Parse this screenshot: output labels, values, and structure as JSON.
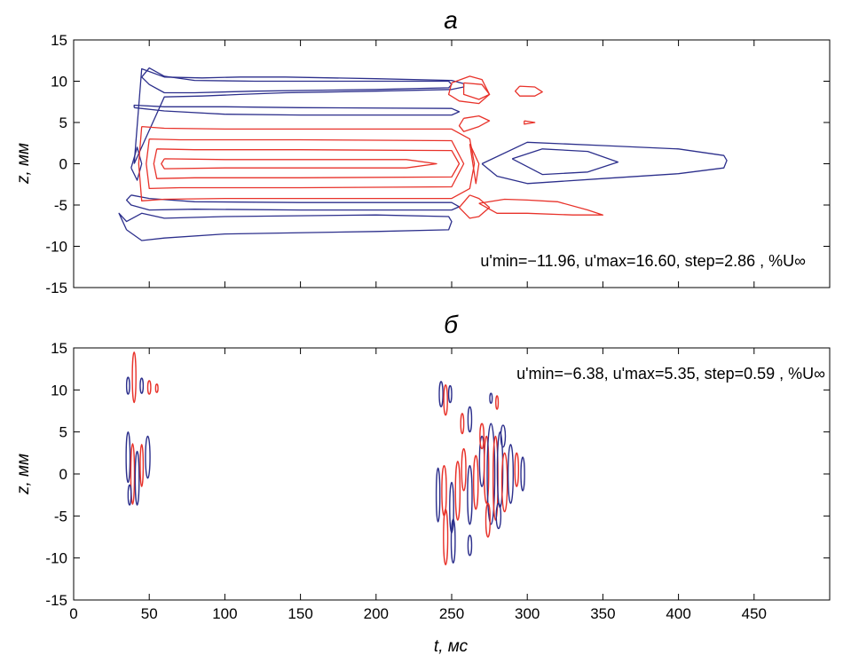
{
  "chart_data": [
    {
      "type": "contour",
      "title": "а",
      "xlabel": "",
      "ylabel": "z, мм",
      "xlim": [
        0,
        500
      ],
      "ylim": [
        -15,
        15
      ],
      "yticks": [
        -15,
        -10,
        -5,
        0,
        5,
        10,
        15
      ],
      "xticks": [
        0,
        50,
        100,
        150,
        200,
        250,
        300,
        350,
        400,
        450
      ],
      "xtick_labels_shown": false,
      "grid": false,
      "annotation": "u'min=−11.96, u'max=16.60, step=2.86 , %U∞",
      "u_min": -11.96,
      "u_max": 16.6,
      "step": 2.86,
      "colors": {
        "positive": "#e8322a",
        "negative": "#2c2f8c"
      },
      "contours": [
        {
          "sign": "negative",
          "x": [
            40,
            60,
            85,
            110,
            140,
            200,
            250,
            258,
            258,
            250,
            200,
            140,
            110,
            85,
            60,
            45,
            40
          ],
          "y": [
            0,
            8.1,
            8.2,
            8.4,
            8.6,
            8.8,
            9.0,
            9.3,
            9.7,
            10.1,
            10.3,
            10.5,
            10.5,
            10.4,
            10.5,
            11.5,
            0
          ]
        },
        {
          "sign": "negative",
          "x": [
            45,
            50,
            60,
            80,
            120,
            200,
            248,
            250,
            248,
            200,
            120,
            80,
            60,
            50,
            45
          ],
          "y": [
            10.5,
            11.6,
            10.6,
            10.1,
            10.0,
            10.0,
            10.0,
            9.6,
            9.2,
            9.0,
            8.8,
            8.6,
            8.6,
            9.6,
            10.5
          ]
        },
        {
          "sign": "negative",
          "x": [
            38,
            50,
            80,
            150,
            250,
            255,
            250,
            150,
            80,
            50,
            38,
            35,
            38
          ],
          "y": [
            -3.8,
            -4.2,
            -4.6,
            -4.7,
            -4.7,
            -5.2,
            -5.6,
            -5.6,
            -5.5,
            -5.6,
            -5.0,
            -4.4,
            -3.8
          ]
        },
        {
          "sign": "negative",
          "x": [
            35,
            45,
            60,
            100,
            200,
            248,
            250,
            248,
            200,
            100,
            60,
            45,
            35,
            30,
            35
          ],
          "y": [
            -8.0,
            -9.3,
            -9.0,
            -8.5,
            -8.2,
            -8.0,
            -7.0,
            -6.4,
            -6.2,
            -6.4,
            -6.6,
            -6.0,
            -7.0,
            -6.0,
            -8.0
          ]
        },
        {
          "sign": "negative",
          "x": [
            270,
            300,
            350,
            400,
            430,
            432,
            430,
            400,
            350,
            300,
            280,
            270
          ],
          "y": [
            0,
            2.6,
            2.2,
            1.8,
            1.0,
            0.4,
            -0.5,
            -1.2,
            -1.8,
            -2.4,
            -1.5,
            0
          ]
        },
        {
          "sign": "negative",
          "x": [
            290,
            310,
            340,
            360,
            340,
            310,
            290
          ],
          "y": [
            0.6,
            1.8,
            1.5,
            0.2,
            -1.0,
            -1.3,
            0.6
          ]
        },
        {
          "sign": "negative",
          "x": [
            40,
            60,
            100,
            150,
            250,
            255,
            250,
            150,
            100,
            60,
            40,
            40
          ],
          "y": [
            6.8,
            6.4,
            6.0,
            5.9,
            5.9,
            6.3,
            6.7,
            6.8,
            6.9,
            6.9,
            7.1,
            6.8
          ]
        },
        {
          "sign": "negative",
          "x": [
            38,
            42,
            45,
            42,
            38
          ],
          "y": [
            -0.5,
            2.0,
            0.0,
            -2.0,
            -0.5
          ]
        },
        {
          "sign": "positive",
          "x": [
            45,
            60,
            100,
            150,
            250,
            262,
            265,
            262,
            250,
            150,
            100,
            60,
            45,
            43,
            45
          ],
          "y": [
            4.5,
            4.3,
            4.2,
            4.2,
            4.2,
            3.0,
            0.0,
            -3.0,
            -4.2,
            -4.2,
            -4.2,
            -4.3,
            -4.5,
            0.0,
            4.5
          ]
        },
        {
          "sign": "positive",
          "x": [
            50,
            70,
            100,
            150,
            250,
            258,
            250,
            150,
            100,
            70,
            50,
            48,
            50
          ],
          "y": [
            3.0,
            2.9,
            2.9,
            2.9,
            2.8,
            0.0,
            -2.8,
            -2.9,
            -2.9,
            -2.9,
            -3.0,
            0.0,
            3.0
          ]
        },
        {
          "sign": "positive",
          "x": [
            55,
            80,
            150,
            250,
            255,
            250,
            150,
            80,
            55,
            53,
            55
          ],
          "y": [
            1.8,
            1.7,
            1.7,
            1.6,
            0.0,
            -1.6,
            -1.7,
            -1.7,
            -1.8,
            0.0,
            1.8
          ]
        },
        {
          "sign": "positive",
          "x": [
            60,
            100,
            150,
            220,
            240,
            220,
            150,
            100,
            60,
            58,
            60
          ],
          "y": [
            0.6,
            0.5,
            0.5,
            0.5,
            0.0,
            -0.5,
            -0.5,
            -0.5,
            -0.6,
            0.0,
            0.6
          ]
        },
        {
          "sign": "positive",
          "x": [
            250,
            262,
            270,
            275,
            268,
            255,
            248,
            250
          ],
          "y": [
            9.8,
            10.6,
            10.2,
            8.4,
            7.3,
            7.6,
            8.4,
            9.8
          ]
        },
        {
          "sign": "positive",
          "x": [
            258,
            270,
            275,
            268,
            258,
            258
          ],
          "y": [
            9.8,
            9.6,
            8.4,
            7.8,
            8.4,
            9.8
          ]
        },
        {
          "sign": "positive",
          "x": [
            295,
            305,
            310,
            305,
            295,
            292,
            295
          ],
          "y": [
            9.4,
            9.3,
            8.7,
            8.2,
            8.2,
            8.8,
            9.4
          ]
        },
        {
          "sign": "positive",
          "x": [
            298,
            305,
            298,
            298
          ],
          "y": [
            5.2,
            5.0,
            4.8,
            5.2
          ]
        },
        {
          "sign": "positive",
          "x": [
            258,
            268,
            275,
            268,
            258,
            255,
            258
          ],
          "y": [
            5.5,
            5.8,
            5.2,
            4.5,
            3.9,
            4.6,
            5.5
          ]
        },
        {
          "sign": "positive",
          "x": [
            262,
            268,
            275,
            268,
            262,
            255,
            262
          ],
          "y": [
            -3.8,
            -4.2,
            -5.3,
            -6.4,
            -6.6,
            -5.3,
            -3.8
          ]
        },
        {
          "sign": "positive",
          "x": [
            268,
            285,
            300,
            320,
            340,
            350,
            330,
            300,
            280,
            268
          ],
          "y": [
            -4.8,
            -4.3,
            -4.4,
            -4.6,
            -5.6,
            -6.2,
            -6.2,
            -6.0,
            -6.0,
            -4.8
          ]
        },
        {
          "sign": "positive",
          "x": [
            262,
            268,
            266,
            262
          ],
          "y": [
            2.4,
            0.0,
            -2.4,
            2.4
          ]
        }
      ]
    },
    {
      "type": "contour",
      "title": "б",
      "xlabel": "t, мс",
      "ylabel": "z, мм",
      "xlim": [
        0,
        500
      ],
      "ylim": [
        -15,
        15
      ],
      "yticks": [
        -15,
        -10,
        -5,
        0,
        5,
        10,
        15
      ],
      "xticks": [
        0,
        50,
        100,
        150,
        200,
        250,
        300,
        350,
        400,
        450
      ],
      "xtick_labels_shown": true,
      "grid": false,
      "annotation": "u'min=−6.38, u'max=5.35, step=0.59 , %U∞",
      "u_min": -6.38,
      "u_max": 5.35,
      "step": 0.59,
      "colors": {
        "positive": "#e8322a",
        "negative": "#2c2f8c"
      },
      "blobs": [
        {
          "sign": "positive",
          "cx": 40,
          "cy": 11.5,
          "rx": 1.2,
          "ry": 3.0
        },
        {
          "sign": "negative",
          "cx": 36,
          "cy": 10.5,
          "rx": 1.0,
          "ry": 1.0
        },
        {
          "sign": "negative",
          "cx": 45,
          "cy": 10.5,
          "rx": 1.0,
          "ry": 0.9
        },
        {
          "sign": "positive",
          "cx": 50,
          "cy": 10.3,
          "rx": 1.0,
          "ry": 0.8
        },
        {
          "sign": "positive",
          "cx": 55,
          "cy": 10.2,
          "rx": 0.8,
          "ry": 0.5
        },
        {
          "sign": "negative",
          "cx": 36,
          "cy": 2.0,
          "rx": 1.3,
          "ry": 3.0
        },
        {
          "sign": "positive",
          "cx": 39,
          "cy": 0.0,
          "rx": 1.2,
          "ry": 3.6
        },
        {
          "sign": "negative",
          "cx": 42,
          "cy": -0.5,
          "rx": 1.3,
          "ry": 3.2
        },
        {
          "sign": "positive",
          "cx": 45,
          "cy": 1.0,
          "rx": 1.0,
          "ry": 2.5
        },
        {
          "sign": "negative",
          "cx": 49,
          "cy": 2.0,
          "rx": 1.5,
          "ry": 2.5
        },
        {
          "sign": "negative",
          "cx": 37,
          "cy": -2.5,
          "rx": 1.0,
          "ry": 1.2
        },
        {
          "sign": "negative",
          "cx": 243,
          "cy": 9.5,
          "rx": 1.2,
          "ry": 1.5
        },
        {
          "sign": "positive",
          "cx": 246,
          "cy": 8.8,
          "rx": 1.2,
          "ry": 1.8
        },
        {
          "sign": "negative",
          "cx": 249,
          "cy": 9.5,
          "rx": 1.0,
          "ry": 1.0
        },
        {
          "sign": "positive",
          "cx": 257,
          "cy": 6.0,
          "rx": 1.0,
          "ry": 1.2
        },
        {
          "sign": "negative",
          "cx": 262,
          "cy": 6.5,
          "rx": 1.2,
          "ry": 1.5
        },
        {
          "sign": "positive",
          "cx": 245,
          "cy": -2.0,
          "rx": 1.5,
          "ry": 3.0
        },
        {
          "sign": "negative",
          "cx": 241,
          "cy": -2.5,
          "rx": 1.2,
          "ry": 3.2
        },
        {
          "sign": "negative",
          "cx": 250,
          "cy": -4.0,
          "rx": 1.3,
          "ry": 3.0
        },
        {
          "sign": "positive",
          "cx": 254,
          "cy": -2.0,
          "rx": 1.5,
          "ry": 3.5
        },
        {
          "sign": "positive",
          "cx": 246,
          "cy": -7.5,
          "rx": 1.4,
          "ry": 3.3
        },
        {
          "sign": "negative",
          "cx": 251,
          "cy": -8.0,
          "rx": 1.3,
          "ry": 2.6
        },
        {
          "sign": "positive",
          "cx": 258,
          "cy": 0.5,
          "rx": 1.4,
          "ry": 2.5
        },
        {
          "sign": "negative",
          "cx": 262,
          "cy": -2.5,
          "rx": 1.5,
          "ry": 3.5
        },
        {
          "sign": "positive",
          "cx": 266,
          "cy": -1.0,
          "rx": 1.5,
          "ry": 3.2
        },
        {
          "sign": "negative",
          "cx": 270,
          "cy": 1.5,
          "rx": 1.6,
          "ry": 3.0
        },
        {
          "sign": "positive",
          "cx": 273,
          "cy": 0.5,
          "rx": 1.5,
          "ry": 4.0
        },
        {
          "sign": "negative",
          "cx": 276,
          "cy": 0.0,
          "rx": 2.5,
          "ry": 6.0
        },
        {
          "sign": "positive",
          "cx": 279,
          "cy": -0.5,
          "rx": 1.6,
          "ry": 5.0
        },
        {
          "sign": "negative",
          "cx": 282,
          "cy": 0.5,
          "rx": 1.8,
          "ry": 4.5
        },
        {
          "sign": "positive",
          "cx": 285,
          "cy": -1.0,
          "rx": 1.8,
          "ry": 3.5
        },
        {
          "sign": "negative",
          "cx": 289,
          "cy": 0.0,
          "rx": 1.7,
          "ry": 3.5
        },
        {
          "sign": "positive",
          "cx": 293,
          "cy": 0.5,
          "rx": 1.2,
          "ry": 2.0
        },
        {
          "sign": "negative",
          "cx": 297,
          "cy": 0.0,
          "rx": 1.2,
          "ry": 2.0
        },
        {
          "sign": "positive",
          "cx": 270,
          "cy": 4.5,
          "rx": 1.3,
          "ry": 1.5
        },
        {
          "sign": "negative",
          "cx": 284,
          "cy": 4.5,
          "rx": 1.5,
          "ry": 1.3
        },
        {
          "sign": "positive",
          "cx": 274,
          "cy": -5.5,
          "rx": 1.4,
          "ry": 2.0
        },
        {
          "sign": "negative",
          "cx": 281,
          "cy": -5.0,
          "rx": 1.5,
          "ry": 1.5
        },
        {
          "sign": "negative",
          "cx": 262,
          "cy": -8.5,
          "rx": 1.2,
          "ry": 1.2
        },
        {
          "sign": "positive",
          "cx": 280,
          "cy": 8.5,
          "rx": 0.8,
          "ry": 0.8
        },
        {
          "sign": "negative",
          "cx": 276,
          "cy": 9.0,
          "rx": 0.8,
          "ry": 0.6
        }
      ]
    }
  ]
}
